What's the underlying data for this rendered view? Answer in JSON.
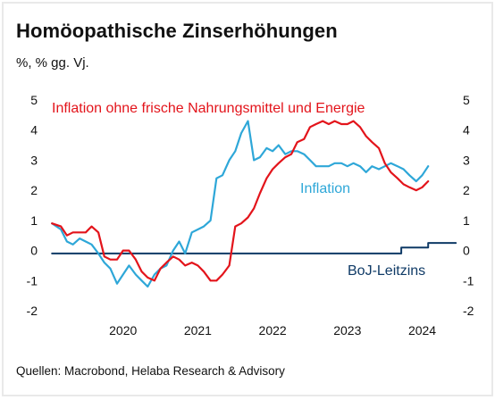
{
  "title": "Homöopathische Zinserhöhungen",
  "subtitle": "%, % gg. Vj.",
  "source": "Quellen: Macrobond, Helaba Research & Advisory",
  "chart_data": {
    "type": "line",
    "ylim": [
      -2,
      5
    ],
    "yticks": [
      "5",
      "4",
      "3",
      "2",
      "1",
      "0",
      "-1",
      "-2"
    ],
    "x_range": [
      2019.5,
      2024.9
    ],
    "xticks": [
      "2020",
      "2021",
      "2022",
      "2023",
      "2024"
    ],
    "grid": false,
    "colors": {
      "core": "#e3141b",
      "headline": "#2ea7d8",
      "boj": "#0f3a66"
    },
    "series": [
      {
        "name": "Inflation ohne frische Nahrungsmittel und Energie",
        "color": "#e3141b",
        "x": [
          2019.55,
          2019.67,
          2019.75,
          2019.83,
          2019.92,
          2020.0,
          2020.08,
          2020.17,
          2020.25,
          2020.33,
          2020.42,
          2020.5,
          2020.58,
          2020.67,
          2020.75,
          2020.83,
          2020.92,
          2021.0,
          2021.08,
          2021.17,
          2021.25,
          2021.33,
          2021.42,
          2021.5,
          2021.58,
          2021.67,
          2021.75,
          2021.83,
          2021.92,
          2022.0,
          2022.08,
          2022.17,
          2022.25,
          2022.33,
          2022.42,
          2022.5,
          2022.58,
          2022.67,
          2022.75,
          2022.83,
          2022.92,
          2023.0,
          2023.08,
          2023.17,
          2023.25,
          2023.33,
          2023.42,
          2023.5,
          2023.58,
          2023.67,
          2023.75,
          2023.83,
          2023.92,
          2024.0,
          2024.08,
          2024.17,
          2024.25,
          2024.33,
          2024.42,
          2024.5,
          2024.58
        ],
        "y": [
          0.9,
          0.8,
          0.5,
          0.6,
          0.6,
          0.6,
          0.8,
          0.6,
          -0.2,
          -0.3,
          -0.3,
          0.0,
          0.0,
          -0.3,
          -0.7,
          -0.9,
          -1.0,
          -0.6,
          -0.4,
          -0.2,
          -0.3,
          -0.5,
          -0.4,
          -0.5,
          -0.7,
          -1.0,
          -1.0,
          -0.8,
          -0.5,
          0.8,
          0.9,
          1.1,
          1.4,
          1.9,
          2.4,
          2.7,
          2.9,
          3.1,
          3.2,
          3.6,
          3.7,
          4.1,
          4.2,
          4.3,
          4.2,
          4.3,
          4.2,
          4.2,
          4.3,
          4.1,
          3.8,
          3.6,
          3.4,
          2.9,
          2.6,
          2.4,
          2.2,
          2.1,
          2.0,
          2.1,
          2.3
        ]
      },
      {
        "name": "Inflation",
        "color": "#2ea7d8",
        "x": [
          2019.55,
          2019.67,
          2019.75,
          2019.83,
          2019.92,
          2020.0,
          2020.08,
          2020.17,
          2020.25,
          2020.33,
          2020.42,
          2020.5,
          2020.58,
          2020.67,
          2020.75,
          2020.83,
          2020.92,
          2021.0,
          2021.08,
          2021.17,
          2021.25,
          2021.33,
          2021.42,
          2021.5,
          2021.58,
          2021.67,
          2021.75,
          2021.83,
          2021.92,
          2022.0,
          2022.08,
          2022.17,
          2022.25,
          2022.33,
          2022.42,
          2022.5,
          2022.58,
          2022.67,
          2022.75,
          2022.83,
          2022.92,
          2023.0,
          2023.08,
          2023.17,
          2023.25,
          2023.33,
          2023.42,
          2023.5,
          2023.58,
          2023.67,
          2023.75,
          2023.83,
          2023.92,
          2024.0,
          2024.08,
          2024.17,
          2024.25,
          2024.33,
          2024.42,
          2024.5,
          2024.58
        ],
        "y": [
          0.9,
          0.7,
          0.3,
          0.2,
          0.4,
          0.3,
          0.2,
          -0.1,
          -0.4,
          -0.6,
          -1.1,
          -0.8,
          -0.5,
          -0.8,
          -1.0,
          -1.2,
          -0.8,
          -0.6,
          -0.5,
          0.0,
          0.3,
          -0.1,
          0.6,
          0.7,
          0.8,
          1.0,
          2.4,
          2.5,
          3.0,
          3.3,
          3.9,
          4.3,
          3.0,
          3.1,
          3.4,
          3.3,
          3.5,
          3.2,
          3.3,
          3.3,
          3.2,
          3.0,
          2.8,
          2.8,
          2.8,
          2.9,
          2.9,
          2.8,
          2.9,
          2.8,
          2.6,
          2.8,
          2.7,
          2.8,
          2.9,
          2.8,
          2.7,
          2.5,
          2.3,
          2.5,
          2.8
        ]
      },
      {
        "name": "BoJ-Leitzins",
        "color": "#0f3a66",
        "x": [
          2019.55,
          2024.22,
          2024.22,
          2024.58,
          2024.58,
          2024.95
        ],
        "y": [
          -0.1,
          -0.1,
          0.1,
          0.1,
          0.25,
          0.25
        ]
      }
    ]
  }
}
